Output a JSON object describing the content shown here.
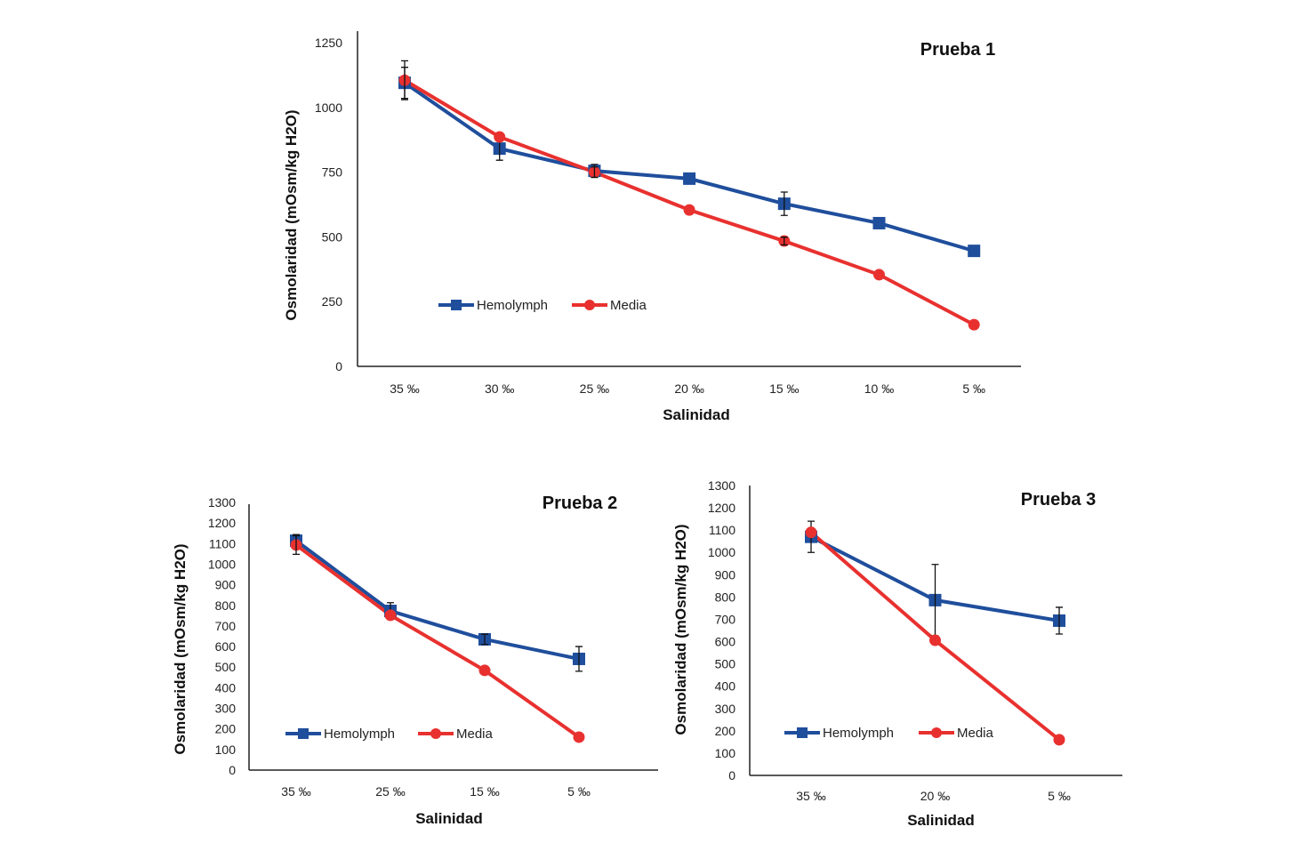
{
  "colors": {
    "hemolymph": "#1f4e9c",
    "media": "#e8312f",
    "axis": "#222222"
  },
  "chart_data": [
    {
      "type": "line",
      "title": "Prueba 1",
      "xlabel": "Salinidad",
      "ylabel": "Osmolaridad (mOsm/kg H2O)",
      "ylim": [
        0,
        1250
      ],
      "yticks": [
        0,
        250,
        500,
        750,
        1000,
        1250
      ],
      "categories": [
        "35 ‰",
        "30 ‰",
        "25 ‰",
        "20 ‰",
        "15 ‰",
        "10 ‰",
        "5 ‰"
      ],
      "legend_position": "lower-left",
      "series": [
        {
          "name": "Hemolymph",
          "marker": "square",
          "values": [
            1095,
            841,
            755,
            725,
            628,
            553,
            446
          ],
          "errors": [
            60,
            45,
            25,
            0,
            45,
            0,
            0
          ]
        },
        {
          "name": "Media",
          "marker": "circle",
          "values": [
            1105,
            886,
            750,
            604,
            484,
            354,
            161
          ],
          "errors": [
            75,
            0,
            20,
            0,
            15,
            0,
            0
          ]
        }
      ]
    },
    {
      "type": "line",
      "title": "Prueba 2",
      "xlabel": "Salinidad",
      "ylabel": "Osmolaridad (mOsm/kg H2O)",
      "ylim": [
        0,
        1300
      ],
      "yticks": [
        0,
        100,
        200,
        300,
        400,
        500,
        600,
        700,
        800,
        900,
        1000,
        1100,
        1200,
        1300
      ],
      "categories": [
        "35 ‰",
        "25 ‰",
        "15 ‰",
        "5 ‰"
      ],
      "legend_position": "lower-left",
      "series": [
        {
          "name": "Hemolymph",
          "marker": "square",
          "values": [
            1114,
            773,
            635,
            540
          ],
          "errors": [
            30,
            40,
            25,
            60
          ]
        },
        {
          "name": "Media",
          "marker": "circle",
          "values": [
            1093,
            752,
            484,
            160
          ],
          "errors": [
            45,
            0,
            0,
            0
          ]
        }
      ]
    },
    {
      "type": "line",
      "title": "Prueba 3",
      "xlabel": "Salinidad",
      "ylabel": "Osmolaridad (mOsm/kg H2O)",
      "ylim": [
        0,
        1300
      ],
      "yticks": [
        0,
        100,
        200,
        300,
        400,
        500,
        600,
        700,
        800,
        900,
        1000,
        1100,
        1200,
        1300
      ],
      "categories": [
        "35 ‰",
        "20 ‰",
        "5 ‰"
      ],
      "legend_position": "lower-left",
      "series": [
        {
          "name": "Hemolymph",
          "marker": "square",
          "values": [
            1070,
            786,
            694
          ],
          "errors": [
            70,
            160,
            60
          ]
        },
        {
          "name": "Media",
          "marker": "circle",
          "values": [
            1090,
            606,
            160
          ],
          "errors": [
            0,
            0,
            0
          ]
        }
      ]
    }
  ]
}
